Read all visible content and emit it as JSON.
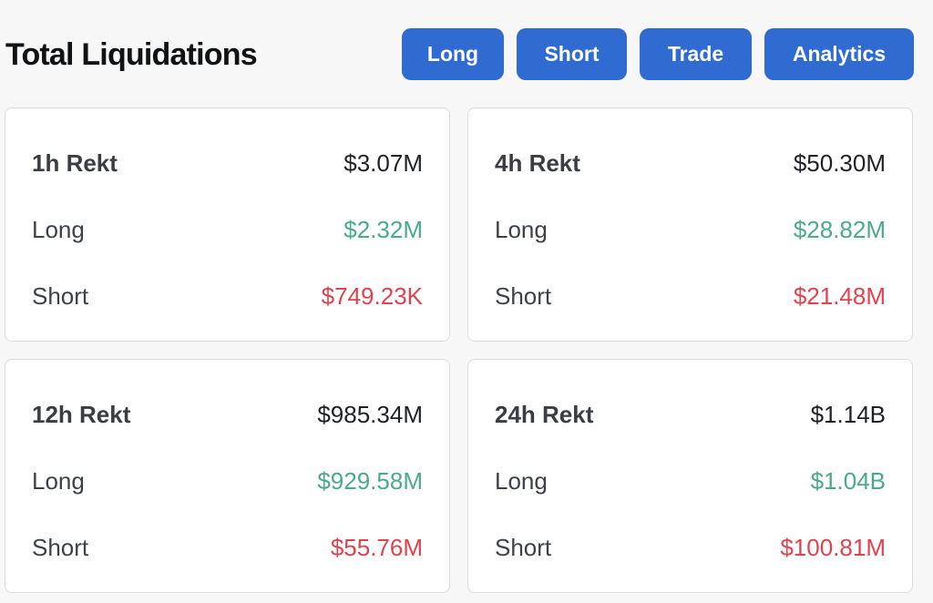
{
  "header": {
    "title": "Total Liquidations",
    "buttons": {
      "long": "Long",
      "short": "Short",
      "trade": "Trade",
      "analytics": "Analytics"
    }
  },
  "cards": [
    {
      "label": "1h Rekt",
      "total": "$3.07M",
      "long_label": "Long",
      "long": "$2.32M",
      "short_label": "Short",
      "short": "$749.23K"
    },
    {
      "label": "4h Rekt",
      "total": "$50.30M",
      "long_label": "Long",
      "long": "$28.82M",
      "short_label": "Short",
      "short": "$21.48M"
    },
    {
      "label": "12h Rekt",
      "total": "$985.34M",
      "long_label": "Long",
      "long": "$929.58M",
      "short_label": "Short",
      "short": "$55.76M"
    },
    {
      "label": "24h Rekt",
      "total": "$1.14B",
      "long_label": "Long",
      "long": "$1.04B",
      "short_label": "Short",
      "short": "$100.81M"
    }
  ],
  "colors": {
    "button_bg": "#2f6bd0",
    "long_value": "#4aaa8a",
    "short_value": "#e0434d",
    "background": "#f7f7f8",
    "card_border": "#dcdde1"
  }
}
